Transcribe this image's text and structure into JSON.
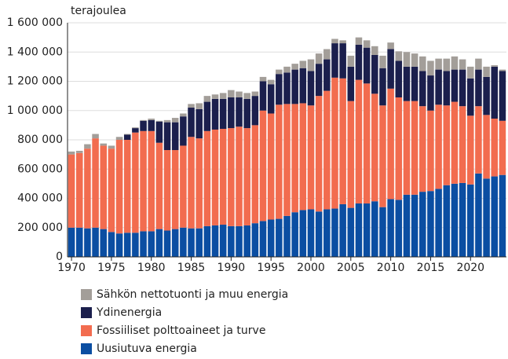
{
  "chart_data": {
    "type": "stacked-bar",
    "y_label": "terajoulea",
    "x": [
      1970,
      1971,
      1972,
      1973,
      1974,
      1975,
      1976,
      1977,
      1978,
      1979,
      1980,
      1981,
      1982,
      1983,
      1984,
      1985,
      1986,
      1987,
      1988,
      1989,
      1990,
      1991,
      1992,
      1993,
      1994,
      1995,
      1996,
      1997,
      1998,
      1999,
      2000,
      2001,
      2002,
      2003,
      2004,
      2005,
      2006,
      2007,
      2008,
      2009,
      2010,
      2011,
      2012,
      2013,
      2014,
      2015,
      2016,
      2017,
      2018,
      2019,
      2020,
      2021,
      2022,
      2023,
      2024
    ],
    "xlim": [
      1969.5,
      2024.5
    ],
    "xticks": [
      1970,
      1975,
      1980,
      1985,
      1990,
      1995,
      2000,
      2005,
      2010,
      2015,
      2020
    ],
    "ylim": [
      0,
      1600000
    ],
    "yticks": [
      0,
      {
        "value": 200000,
        "label": "200 000"
      },
      {
        "value": 400000,
        "label": "400 000"
      },
      {
        "value": 600000,
        "label": "600 000"
      },
      {
        "value": 800000,
        "label": "800 000"
      },
      {
        "value": 1000000,
        "label": "1 000 000"
      },
      {
        "value": 1200000,
        "label": "1 200 000"
      },
      {
        "value": 1400000,
        "label": "1 400 000"
      },
      {
        "value": 1600000,
        "label": "1 600 000"
      }
    ],
    "grid": true,
    "series": [
      {
        "name": "Uusiutuva energia",
        "color": "#0b4ea2",
        "values": [
          200000,
          200000,
          195000,
          200000,
          190000,
          170000,
          160000,
          165000,
          165000,
          175000,
          175000,
          190000,
          180000,
          190000,
          200000,
          195000,
          195000,
          210000,
          215000,
          220000,
          210000,
          210000,
          215000,
          230000,
          245000,
          255000,
          260000,
          280000,
          305000,
          320000,
          325000,
          310000,
          325000,
          330000,
          360000,
          335000,
          365000,
          365000,
          380000,
          340000,
          395000,
          390000,
          425000,
          425000,
          445000,
          450000,
          465000,
          490000,
          500000,
          505000,
          495000,
          570000,
          535000,
          550000,
          560000
        ]
      },
      {
        "name": "Fossiiliset polttoaineet ja turve",
        "color": "#f26c4f",
        "values": [
          500000,
          510000,
          545000,
          610000,
          570000,
          570000,
          640000,
          635000,
          685000,
          685000,
          685000,
          590000,
          550000,
          540000,
          560000,
          625000,
          615000,
          650000,
          655000,
          655000,
          670000,
          680000,
          665000,
          670000,
          755000,
          725000,
          780000,
          765000,
          740000,
          730000,
          710000,
          790000,
          810000,
          895000,
          860000,
          730000,
          845000,
          820000,
          735000,
          695000,
          755000,
          700000,
          640000,
          640000,
          585000,
          550000,
          575000,
          545000,
          560000,
          525000,
          470000,
          460000,
          435000,
          395000,
          370000
        ]
      },
      {
        "name": "Ydinenergia",
        "color": "#1b1f4d",
        "values": [
          0,
          0,
          0,
          0,
          0,
          0,
          0,
          35000,
          30000,
          70000,
          75000,
          145000,
          190000,
          190000,
          200000,
          200000,
          200000,
          200000,
          210000,
          205000,
          210000,
          200000,
          200000,
          200000,
          200000,
          200000,
          210000,
          215000,
          235000,
          240000,
          235000,
          220000,
          215000,
          235000,
          240000,
          235000,
          240000,
          245000,
          265000,
          255000,
          270000,
          250000,
          235000,
          235000,
          240000,
          240000,
          240000,
          235000,
          220000,
          250000,
          255000,
          250000,
          260000,
          355000,
          340000
        ]
      },
      {
        "name": "Sähkön nettotuonti ja muu energia",
        "color": "#a39e99",
        "values": [
          20000,
          15000,
          30000,
          30000,
          15000,
          20000,
          20000,
          5000,
          5000,
          5000,
          10000,
          5000,
          15000,
          30000,
          20000,
          25000,
          40000,
          40000,
          30000,
          40000,
          50000,
          40000,
          40000,
          30000,
          30000,
          30000,
          30000,
          40000,
          40000,
          50000,
          80000,
          70000,
          70000,
          30000,
          20000,
          75000,
          50000,
          50000,
          60000,
          85000,
          45000,
          65000,
          100000,
          90000,
          100000,
          100000,
          75000,
          85000,
          90000,
          70000,
          80000,
          75000,
          70000,
          10000,
          10000
        ]
      }
    ]
  }
}
